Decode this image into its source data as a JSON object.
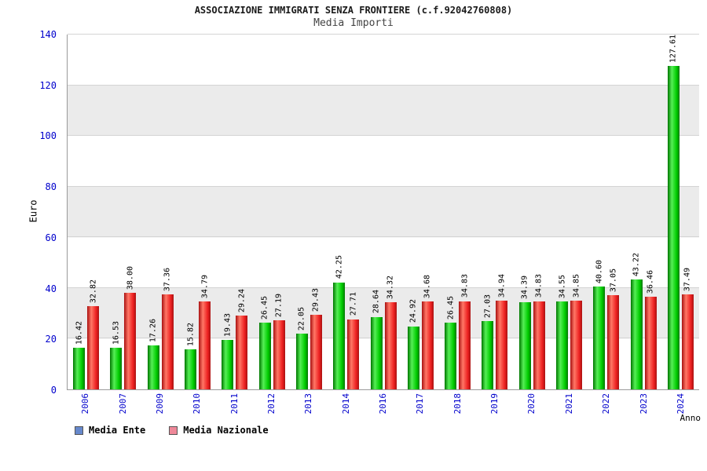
{
  "chart_data": {
    "type": "bar",
    "title": "ASSOCIAZIONE IMMIGRATI SENZA FRONTIERE (c.f.92042760808)",
    "subtitle": "Media Importi",
    "xlabel": "Anno",
    "ylabel": "Euro",
    "ylim": [
      0,
      140
    ],
    "ytick_step": 20,
    "grid": true,
    "legend_position": "bottom-left",
    "axis_color": "#0000cc",
    "categories": [
      "2006",
      "2007",
      "2009",
      "2010",
      "2011",
      "2012",
      "2013",
      "2014",
      "2016",
      "2017",
      "2018",
      "2019",
      "2020",
      "2021",
      "2022",
      "2023",
      "2024"
    ],
    "series": [
      {
        "name": "Media Ente",
        "color": "#00cc00",
        "color_light": "#55ee55",
        "color_dark": "#007700",
        "legend_color": "#6688cc",
        "values": [
          16.42,
          16.53,
          17.26,
          15.82,
          19.43,
          26.45,
          22.05,
          42.25,
          28.64,
          24.92,
          26.45,
          27.03,
          34.39,
          34.55,
          40.6,
          43.22,
          127.61
        ]
      },
      {
        "name": "Media Nazionale",
        "color": "#ee2222",
        "color_light": "#ff7766",
        "color_dark": "#aa1111",
        "legend_color": "#ee8899",
        "values": [
          32.82,
          38.0,
          37.36,
          34.79,
          29.24,
          27.19,
          29.43,
          27.71,
          34.32,
          34.68,
          34.83,
          34.94,
          34.83,
          34.85,
          37.05,
          36.46,
          37.49
        ]
      }
    ]
  }
}
